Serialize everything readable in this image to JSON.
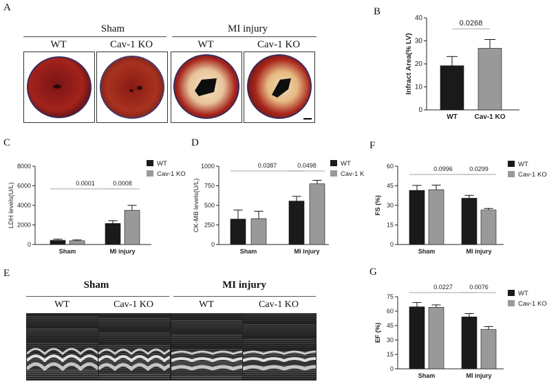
{
  "panels": {
    "a": "A",
    "b": "B",
    "c": "C",
    "d": "D",
    "e": "E",
    "f": "F",
    "g": "G"
  },
  "tissue": {
    "group_sham": "Sham",
    "group_mi": "MI injury",
    "col_labels": [
      "WT",
      "Cav-1 KO",
      "WT",
      "Cav-1 KO"
    ]
  },
  "echo": {
    "group_sham": "Sham",
    "group_mi": "MI injury",
    "col_labels": [
      "WT",
      "Cav-1 KO",
      "WT",
      "Cav-1 KO"
    ]
  },
  "chart_data": [
    {
      "id": "infarct",
      "type": "bar",
      "title": "",
      "ylabel": "Infract Area(% LV)",
      "xlabel": "",
      "ylim": [
        0,
        40
      ],
      "yticks": [
        0,
        10,
        20,
        30,
        40
      ],
      "categories": [
        "WT",
        "Cav-1 KO"
      ],
      "values": [
        19.2,
        26.8
      ],
      "errors": [
        4.0,
        3.8
      ],
      "colors": [
        "#1a1a1a",
        "#999999"
      ],
      "pvalues": [
        {
          "text": "0.0268",
          "from": 0,
          "to": 1
        }
      ]
    },
    {
      "id": "ldh",
      "type": "bar",
      "title": "",
      "ylabel": "LDH levels(U/L)",
      "xlabel": "",
      "ylim": [
        0,
        8000
      ],
      "yticks": [
        0,
        2000,
        4000,
        6000,
        8000
      ],
      "categories": [
        "Sham",
        "MI injury"
      ],
      "series": [
        {
          "name": "WT",
          "color": "#1a1a1a",
          "values": [
            430,
            2150
          ],
          "errors": [
            120,
            280
          ]
        },
        {
          "name": "Cav-1 KO",
          "color": "#999999",
          "values": [
            380,
            3500
          ],
          "errors": [
            100,
            500
          ]
        }
      ],
      "pvalues": [
        {
          "text": "0.0001",
          "from": [
            0,
            0
          ],
          "to": [
            1,
            0
          ]
        },
        {
          "text": "0.0008",
          "from": [
            1,
            0
          ],
          "to": [
            1,
            1
          ]
        }
      ],
      "legend": "top-right"
    },
    {
      "id": "ckmb",
      "type": "bar",
      "title": "",
      "ylabel": "CK-MB levels(U/L)",
      "xlabel": "",
      "ylim": [
        0,
        1000
      ],
      "yticks": [
        0,
        250,
        500,
        750,
        1000
      ],
      "categories": [
        "Sham",
        "MI injury"
      ],
      "series": [
        {
          "name": "WT",
          "color": "#1a1a1a",
          "values": [
            325,
            555
          ],
          "errors": [
            115,
            60
          ]
        },
        {
          "name": "Cav-1 KO",
          "color": "#999999",
          "values": [
            330,
            775
          ],
          "errors": [
            95,
            45
          ]
        }
      ],
      "pvalues": [
        {
          "text": "0.0387",
          "from": [
            0,
            0
          ],
          "to": [
            1,
            0
          ]
        },
        {
          "text": "0.0498",
          "from": [
            1,
            0
          ],
          "to": [
            1,
            1
          ]
        }
      ],
      "legend": "top-right"
    },
    {
      "id": "fs",
      "type": "bar",
      "title": "",
      "ylabel": "FS (%)",
      "xlabel": "",
      "ylim": [
        0,
        60
      ],
      "yticks": [
        0,
        15,
        30,
        45,
        60
      ],
      "categories": [
        "Sham",
        "MI injury"
      ],
      "series": [
        {
          "name": "WT",
          "color": "#1a1a1a",
          "values": [
            41.5,
            35.5
          ],
          "errors": [
            3.8,
            2.2
          ]
        },
        {
          "name": "Cav-1 KO",
          "color": "#999999",
          "values": [
            42.0,
            26.5
          ],
          "errors": [
            3.5,
            1.2
          ]
        }
      ],
      "pvalues": [
        {
          "text": "0.0996",
          "from": [
            0,
            0
          ],
          "to": [
            1,
            0
          ]
        },
        {
          "text": "0.0299",
          "from": [
            1,
            0
          ],
          "to": [
            1,
            1
          ]
        }
      ],
      "legend": "top-right"
    },
    {
      "id": "ef",
      "type": "bar",
      "title": "",
      "ylabel": "EF (%)",
      "xlabel": "",
      "ylim": [
        0,
        75
      ],
      "yticks": [
        0,
        15,
        30,
        45,
        60,
        75
      ],
      "categories": [
        "Sham",
        "MI injury"
      ],
      "series": [
        {
          "name": "WT",
          "color": "#1a1a1a",
          "values": [
            64.5,
            54.0
          ],
          "errors": [
            4.5,
            3.5
          ]
        },
        {
          "name": "Cav-1 KO",
          "color": "#999999",
          "values": [
            64.0,
            41.0
          ],
          "errors": [
            2.5,
            3.0
          ]
        }
      ],
      "pvalues": [
        {
          "text": "0.0227",
          "from": [
            0,
            0
          ],
          "to": [
            1,
            0
          ]
        },
        {
          "text": "0.0076",
          "from": [
            1,
            0
          ],
          "to": [
            1,
            1
          ]
        }
      ],
      "legend": "top-right"
    }
  ]
}
